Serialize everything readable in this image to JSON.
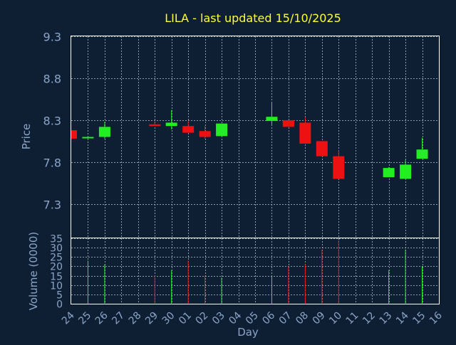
{
  "chart_data": {
    "type": "candlestick",
    "title": "LILA - last updated 15/10/2025",
    "ylabel": "Price",
    "volume_ylabel": "Volume (0000)",
    "xlabel": "Day",
    "ylim": [
      6.9,
      9.3
    ],
    "yticks": [
      "9.3",
      "8.8",
      "8.3",
      "7.8",
      "7.3"
    ],
    "yticks_values": [
      9.3,
      8.8,
      8.3,
      7.8,
      7.3
    ],
    "volume_ylim": [
      0,
      35
    ],
    "volume_ticks": [
      "35",
      "30",
      "25",
      "20",
      "15",
      "10",
      "5",
      "0"
    ],
    "volume_ticks_values": [
      35,
      30,
      25,
      20,
      15,
      10,
      5,
      0
    ],
    "colors": {
      "up": "#22ee22",
      "down": "#ee1111",
      "title": "#ffff33",
      "background": "#0f1f33"
    },
    "grid": true,
    "categories": [
      "24",
      "25",
      "26",
      "27",
      "28",
      "29",
      "30",
      "01",
      "02",
      "03",
      "04",
      "05",
      "06",
      "07",
      "08",
      "09",
      "10",
      "11",
      "12",
      "13",
      "14",
      "15",
      "16"
    ],
    "candles": [
      {
        "day": "24",
        "open": 8.18,
        "high": 8.18,
        "low": 8.07,
        "close": 8.08,
        "volume": 0
      },
      {
        "day": "25",
        "open": 8.09,
        "high": 8.1,
        "low": 8.08,
        "close": 8.1,
        "volume": 23
      },
      {
        "day": "26",
        "open": 8.1,
        "high": 8.28,
        "low": 8.08,
        "close": 8.22,
        "volume": 21
      },
      {
        "day": "27",
        "open": null,
        "high": null,
        "low": null,
        "close": null,
        "volume": 0
      },
      {
        "day": "28",
        "open": null,
        "high": null,
        "low": null,
        "close": null,
        "volume": 0
      },
      {
        "day": "29",
        "open": 8.25,
        "high": 8.27,
        "low": 8.23,
        "close": 8.23,
        "volume": 15
      },
      {
        "day": "30",
        "open": 8.23,
        "high": 8.42,
        "low": 8.19,
        "close": 8.27,
        "volume": 18
      },
      {
        "day": "01",
        "open": 8.23,
        "high": 8.29,
        "low": 8.16,
        "close": 8.15,
        "volume": 23
      },
      {
        "day": "02",
        "open": 8.17,
        "high": 8.23,
        "low": 8.08,
        "close": 8.1,
        "volume": 15
      },
      {
        "day": "03",
        "open": 8.11,
        "high": 8.26,
        "low": 8.11,
        "close": 8.26,
        "volume": 14
      },
      {
        "day": "04",
        "open": null,
        "high": null,
        "low": null,
        "close": null,
        "volume": 0
      },
      {
        "day": "05",
        "open": null,
        "high": null,
        "low": null,
        "close": null,
        "volume": 0
      },
      {
        "day": "06",
        "open": 8.29,
        "high": 8.51,
        "low": 8.25,
        "close": 8.34,
        "volume": 15
      },
      {
        "day": "07",
        "open": 8.3,
        "high": 8.3,
        "low": 8.22,
        "close": 8.22,
        "volume": 20
      },
      {
        "day": "08",
        "open": 8.27,
        "high": 8.33,
        "low": 8.02,
        "close": 8.02,
        "volume": 21
      },
      {
        "day": "09",
        "open": 8.05,
        "high": 8.05,
        "low": 7.87,
        "close": 7.87,
        "volume": 29
      },
      {
        "day": "10",
        "open": 7.87,
        "high": 7.94,
        "low": 7.6,
        "close": 7.6,
        "volume": 34
      },
      {
        "day": "11",
        "open": null,
        "high": null,
        "low": null,
        "close": null,
        "volume": 0
      },
      {
        "day": "12",
        "open": null,
        "high": null,
        "low": null,
        "close": null,
        "volume": 0
      },
      {
        "day": "13",
        "open": 7.62,
        "high": 7.74,
        "low": 7.62,
        "close": 7.73,
        "volume": 18
      },
      {
        "day": "14",
        "open": 7.6,
        "high": 7.83,
        "low": 7.6,
        "close": 7.77,
        "volume": 29
      },
      {
        "day": "15",
        "open": 7.84,
        "high": 8.09,
        "low": 7.84,
        "close": 7.95,
        "volume": 20
      },
      {
        "day": "16",
        "open": null,
        "high": null,
        "low": null,
        "close": null,
        "volume": 0
      }
    ]
  }
}
